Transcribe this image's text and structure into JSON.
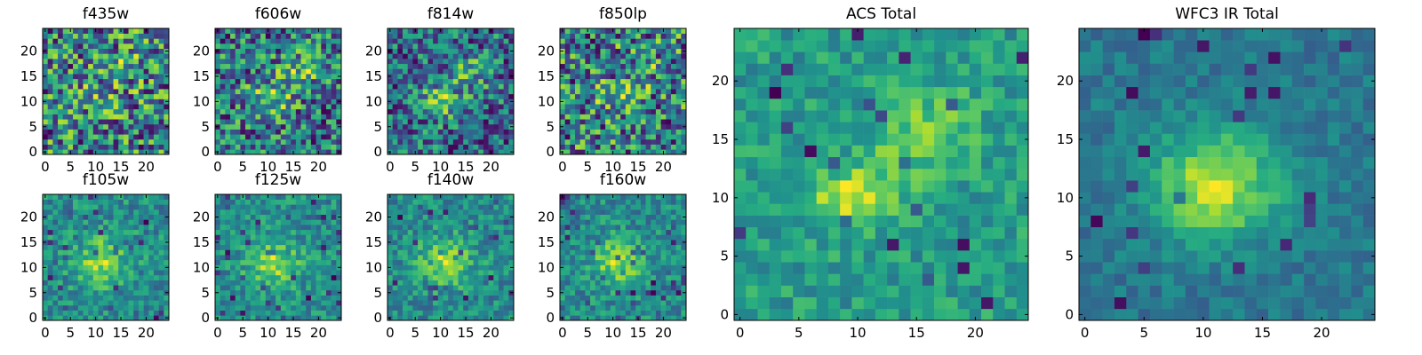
{
  "chart_data": {
    "type": "heatmap",
    "colormap": "viridis",
    "grid_size": 25,
    "panels": [
      {
        "name": "f435w",
        "title": "f435w",
        "kind": "noise",
        "x_ticks": [
          0,
          5,
          10,
          15,
          20
        ],
        "y_ticks": [
          0,
          5,
          10,
          15,
          20
        ],
        "xlim": [
          -0.5,
          24.5
        ],
        "ylim": [
          -0.5,
          24.5
        ]
      },
      {
        "name": "f606w",
        "title": "f606w",
        "kind": "blob",
        "x_ticks": [
          0,
          5,
          10,
          15,
          20
        ],
        "y_ticks": [
          0,
          5,
          10,
          15,
          20
        ],
        "xlim": [
          -0.5,
          24.5
        ],
        "ylim": [
          -0.5,
          24.5
        ]
      },
      {
        "name": "f814w",
        "title": "f814w",
        "kind": "blob",
        "x_ticks": [
          0,
          5,
          10,
          15,
          20
        ],
        "y_ticks": [
          0,
          5,
          10,
          15,
          20
        ],
        "xlim": [
          -0.5,
          24.5
        ],
        "ylim": [
          -0.5,
          24.5
        ]
      },
      {
        "name": "f850lp",
        "title": "f850lp",
        "kind": "noise",
        "x_ticks": [
          0,
          5,
          10,
          15,
          20
        ],
        "y_ticks": [
          0,
          5,
          10,
          15,
          20
        ],
        "xlim": [
          -0.5,
          24.5
        ],
        "ylim": [
          -0.5,
          24.5
        ]
      },
      {
        "name": "f105w",
        "title": "f105w",
        "kind": "ir",
        "x_ticks": [
          0,
          5,
          10,
          15,
          20
        ],
        "y_ticks": [
          0,
          5,
          10,
          15,
          20
        ],
        "xlim": [
          -0.5,
          24.5
        ],
        "ylim": [
          -0.5,
          24.5
        ]
      },
      {
        "name": "f125w",
        "title": "f125w",
        "kind": "ir",
        "x_ticks": [
          0,
          5,
          10,
          15,
          20
        ],
        "y_ticks": [
          0,
          5,
          10,
          15,
          20
        ],
        "xlim": [
          -0.5,
          24.5
        ],
        "ylim": [
          -0.5,
          24.5
        ]
      },
      {
        "name": "f140w",
        "title": "f140w",
        "kind": "ir",
        "x_ticks": [
          0,
          5,
          10,
          15,
          20
        ],
        "y_ticks": [
          0,
          5,
          10,
          15,
          20
        ],
        "xlim": [
          -0.5,
          24.5
        ],
        "ylim": [
          -0.5,
          24.5
        ]
      },
      {
        "name": "f160w",
        "title": "f160w",
        "kind": "ir",
        "x_ticks": [
          0,
          5,
          10,
          15,
          20
        ],
        "y_ticks": [
          0,
          5,
          10,
          15,
          20
        ],
        "xlim": [
          -0.5,
          24.5
        ],
        "ylim": [
          -0.5,
          24.5
        ]
      },
      {
        "name": "acs-total",
        "title": "ACS Total",
        "kind": "acs",
        "x_ticks": [
          0,
          5,
          10,
          15,
          20
        ],
        "y_ticks": [
          0,
          5,
          10,
          15,
          20
        ],
        "xlim": [
          -0.5,
          24.5
        ],
        "ylim": [
          -0.5,
          24.5
        ]
      },
      {
        "name": "wfc3-ir-total",
        "title": "WFC3 IR Total",
        "kind": "wfc3",
        "x_ticks": [
          0,
          5,
          10,
          15,
          20
        ],
        "y_ticks": [
          0,
          5,
          10,
          15,
          20
        ],
        "xlim": [
          -0.5,
          24.5
        ],
        "ylim": [
          -0.5,
          24.5
        ]
      }
    ]
  }
}
